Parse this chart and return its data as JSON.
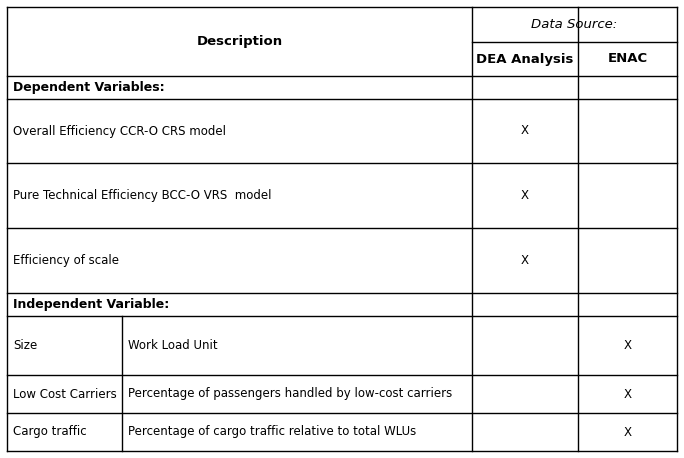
{
  "fig_width": 6.84,
  "fig_height": 4.58,
  "bg_color": "#ffffff",
  "header_top": "Data Source:",
  "header_col1": "Description",
  "header_col2": "DEA Analysis",
  "header_col3": "ENAC",
  "section1_label": "Dependent Variables:",
  "section2_label": "Independent Variable:",
  "rows_dep": [
    {
      "col1": "Overall Efficiency CCR-O CRS model",
      "col2": "X",
      "col3": ""
    },
    {
      "col1": "Pure Technical Efficiency BCC-O VRS  model",
      "col2": "X",
      "col3": ""
    },
    {
      "col1": "Efficiency of scale",
      "col2": "X",
      "col3": ""
    }
  ],
  "rows_ind": [
    {
      "col1a": "Size",
      "col1b": "Work Load Unit",
      "col2": "",
      "col3": "X"
    },
    {
      "col1a": "Low Cost Carriers",
      "col1b": "Percentage of passengers handled by low-cost carriers",
      "col2": "",
      "col3": "X"
    },
    {
      "col1a": "Cargo traffic",
      "col1b": "Percentage of cargo traffic relative to total WLUs",
      "col2": "",
      "col3": "X"
    }
  ],
  "line_color": "#000000",
  "font_size_header": 9.5,
  "font_size_body": 8.5,
  "font_size_section": 9.0
}
